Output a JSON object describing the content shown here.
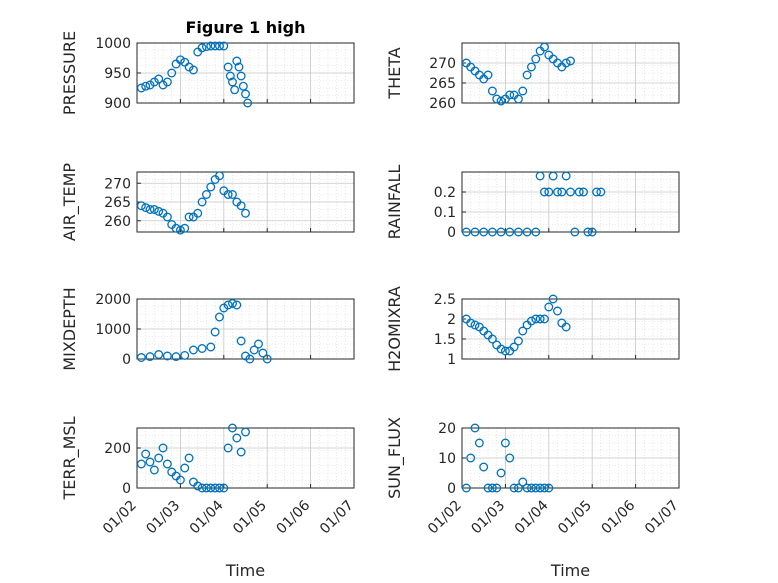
{
  "figure": {
    "title": "Figure 1 high"
  },
  "chart_data": [
    {
      "type": "scatter",
      "title": "Figure 1 high",
      "xlabel": "",
      "ylabel": "PRESSURE",
      "ylim": [
        900,
        1000
      ],
      "yticks": [
        900,
        950,
        1000
      ],
      "ytick_labels": [
        "900",
        "950",
        "1000"
      ],
      "grid": true,
      "marker_color": "#0072BD",
      "x": [
        "01/02",
        "01/03",
        "01/04",
        "01/05",
        "01/06"
      ],
      "points": [
        [
          1.1,
          925
        ],
        [
          1.2,
          928
        ],
        [
          1.3,
          930
        ],
        [
          1.4,
          935
        ],
        [
          1.5,
          940
        ],
        [
          1.6,
          930
        ],
        [
          1.7,
          935
        ],
        [
          1.8,
          950
        ],
        [
          1.9,
          965
        ],
        [
          2.0,
          972
        ],
        [
          2.1,
          968
        ],
        [
          2.2,
          960
        ],
        [
          2.3,
          955
        ],
        [
          2.4,
          985
        ],
        [
          2.5,
          992
        ],
        [
          2.6,
          994
        ],
        [
          2.7,
          995
        ],
        [
          2.8,
          995
        ],
        [
          2.9,
          995
        ],
        [
          3.0,
          995
        ],
        [
          3.1,
          960
        ],
        [
          3.15,
          945
        ],
        [
          3.2,
          935
        ],
        [
          3.25,
          922
        ],
        [
          3.3,
          970
        ],
        [
          3.35,
          960
        ],
        [
          3.4,
          945
        ],
        [
          3.45,
          928
        ],
        [
          3.5,
          915
        ],
        [
          3.55,
          900
        ]
      ]
    },
    {
      "type": "scatter",
      "title": "",
      "xlabel": "",
      "ylabel": "THETA",
      "ylim": [
        260,
        275
      ],
      "yticks": [
        260,
        265,
        270
      ],
      "ytick_labels": [
        "260",
        "265",
        "270"
      ],
      "grid": true,
      "marker_color": "#0072BD",
      "points": [
        [
          1.1,
          270
        ],
        [
          1.2,
          269
        ],
        [
          1.3,
          268
        ],
        [
          1.4,
          267
        ],
        [
          1.5,
          266
        ],
        [
          1.6,
          267
        ],
        [
          1.7,
          263
        ],
        [
          1.8,
          261
        ],
        [
          1.9,
          260.5
        ],
        [
          2.0,
          261
        ],
        [
          2.1,
          262
        ],
        [
          2.2,
          262
        ],
        [
          2.3,
          261
        ],
        [
          2.4,
          263
        ],
        [
          2.5,
          267
        ],
        [
          2.6,
          269
        ],
        [
          2.7,
          271
        ],
        [
          2.8,
          273
        ],
        [
          2.9,
          274
        ],
        [
          3.0,
          272
        ],
        [
          3.1,
          271
        ],
        [
          3.2,
          270
        ],
        [
          3.3,
          269
        ],
        [
          3.4,
          270
        ],
        [
          3.5,
          270.5
        ]
      ]
    },
    {
      "type": "scatter",
      "title": "",
      "xlabel": "",
      "ylabel": "AIR_TEMP",
      "ylim": [
        257,
        273
      ],
      "yticks": [
        260,
        265,
        270
      ],
      "ytick_labels": [
        "260",
        "265",
        "270"
      ],
      "grid": true,
      "marker_color": "#0072BD",
      "points": [
        [
          1.1,
          264
        ],
        [
          1.2,
          263.5
        ],
        [
          1.3,
          263
        ],
        [
          1.4,
          263
        ],
        [
          1.5,
          262.5
        ],
        [
          1.6,
          262
        ],
        [
          1.7,
          261
        ],
        [
          1.8,
          259
        ],
        [
          1.9,
          258
        ],
        [
          2.0,
          257.5
        ],
        [
          2.1,
          258
        ],
        [
          2.2,
          261
        ],
        [
          2.3,
          261
        ],
        [
          2.4,
          262
        ],
        [
          2.5,
          265
        ],
        [
          2.6,
          267
        ],
        [
          2.7,
          269
        ],
        [
          2.8,
          271
        ],
        [
          2.9,
          272
        ],
        [
          3.0,
          268
        ],
        [
          3.1,
          267
        ],
        [
          3.2,
          267
        ],
        [
          3.3,
          265
        ],
        [
          3.4,
          264
        ],
        [
          3.5,
          262
        ]
      ]
    },
    {
      "type": "scatter",
      "title": "",
      "xlabel": "",
      "ylabel": "RAINFALL",
      "ylim": [
        0,
        0.3
      ],
      "yticks": [
        0,
        0.1,
        0.2
      ],
      "ytick_labels": [
        "0",
        "0.1",
        "0.2"
      ],
      "grid": true,
      "marker_color": "#0072BD",
      "points": [
        [
          1.1,
          0
        ],
        [
          1.3,
          0
        ],
        [
          1.5,
          0
        ],
        [
          1.7,
          0
        ],
        [
          1.9,
          0
        ],
        [
          2.1,
          0
        ],
        [
          2.3,
          0
        ],
        [
          2.5,
          0
        ],
        [
          2.7,
          0
        ],
        [
          2.8,
          0.28
        ],
        [
          2.9,
          0.2
        ],
        [
          3.0,
          0.2
        ],
        [
          3.1,
          0.28
        ],
        [
          3.2,
          0.2
        ],
        [
          3.3,
          0.2
        ],
        [
          3.4,
          0.28
        ],
        [
          3.5,
          0.2
        ],
        [
          3.6,
          0
        ],
        [
          3.7,
          0.2
        ],
        [
          3.8,
          0.2
        ],
        [
          3.9,
          0
        ],
        [
          4.0,
          0
        ],
        [
          4.1,
          0.2
        ],
        [
          4.2,
          0.2
        ]
      ]
    },
    {
      "type": "scatter",
      "title": "",
      "xlabel": "",
      "ylabel": "MIXDEPTH",
      "ylim": [
        0,
        2000
      ],
      "yticks": [
        0,
        1000,
        2000
      ],
      "ytick_labels": [
        "0",
        "1000",
        "2000"
      ],
      "grid": true,
      "marker_color": "#0072BD",
      "points": [
        [
          1.1,
          50
        ],
        [
          1.3,
          80
        ],
        [
          1.5,
          150
        ],
        [
          1.7,
          100
        ],
        [
          1.9,
          80
        ],
        [
          2.1,
          120
        ],
        [
          2.3,
          300
        ],
        [
          2.5,
          350
        ],
        [
          2.7,
          400
        ],
        [
          2.8,
          900
        ],
        [
          2.9,
          1400
        ],
        [
          3.0,
          1700
        ],
        [
          3.1,
          1800
        ],
        [
          3.2,
          1850
        ],
        [
          3.3,
          1800
        ],
        [
          3.4,
          600
        ],
        [
          3.5,
          100
        ],
        [
          3.6,
          0
        ],
        [
          3.7,
          300
        ],
        [
          3.8,
          500
        ],
        [
          3.9,
          200
        ],
        [
          4.0,
          0
        ]
      ]
    },
    {
      "type": "scatter",
      "title": "",
      "xlabel": "",
      "ylabel": "H2OMIXRA",
      "ylim": [
        1,
        2.5
      ],
      "yticks": [
        1,
        1.5,
        2,
        2.5
      ],
      "ytick_labels": [
        "1",
        "1.5",
        "2",
        "2.5"
      ],
      "grid": true,
      "marker_color": "#0072BD",
      "points": [
        [
          1.1,
          2.0
        ],
        [
          1.2,
          1.9
        ],
        [
          1.3,
          1.85
        ],
        [
          1.4,
          1.8
        ],
        [
          1.5,
          1.7
        ],
        [
          1.6,
          1.6
        ],
        [
          1.7,
          1.5
        ],
        [
          1.8,
          1.35
        ],
        [
          1.9,
          1.25
        ],
        [
          2.0,
          1.2
        ],
        [
          2.1,
          1.2
        ],
        [
          2.2,
          1.3
        ],
        [
          2.3,
          1.45
        ],
        [
          2.4,
          1.7
        ],
        [
          2.5,
          1.85
        ],
        [
          2.6,
          1.95
        ],
        [
          2.7,
          2.0
        ],
        [
          2.8,
          2.0
        ],
        [
          2.9,
          2.0
        ],
        [
          3.0,
          2.3
        ],
        [
          3.1,
          2.5
        ],
        [
          3.2,
          2.2
        ],
        [
          3.3,
          1.9
        ],
        [
          3.4,
          1.8
        ]
      ]
    },
    {
      "type": "scatter",
      "title": "",
      "xlabel": "Time",
      "ylabel": "TERR_MSL",
      "ylim": [
        0,
        300
      ],
      "yticks": [
        0,
        200
      ],
      "ytick_labels": [
        "0",
        "200"
      ],
      "xticks": [
        "01/02",
        "01/03",
        "01/04",
        "01/05",
        "01/06",
        "01/07"
      ],
      "grid": true,
      "marker_color": "#0072BD",
      "points": [
        [
          1.1,
          120
        ],
        [
          1.2,
          170
        ],
        [
          1.3,
          130
        ],
        [
          1.4,
          90
        ],
        [
          1.5,
          150
        ],
        [
          1.6,
          200
        ],
        [
          1.7,
          120
        ],
        [
          1.8,
          80
        ],
        [
          1.9,
          60
        ],
        [
          2.0,
          40
        ],
        [
          2.1,
          100
        ],
        [
          2.2,
          150
        ],
        [
          2.3,
          30
        ],
        [
          2.4,
          10
        ],
        [
          2.5,
          0
        ],
        [
          2.6,
          0
        ],
        [
          2.7,
          0
        ],
        [
          2.8,
          0
        ],
        [
          2.9,
          0
        ],
        [
          3.0,
          0
        ],
        [
          3.1,
          200
        ],
        [
          3.2,
          300
        ],
        [
          3.3,
          250
        ],
        [
          3.4,
          180
        ],
        [
          3.5,
          280
        ]
      ]
    },
    {
      "type": "scatter",
      "title": "",
      "xlabel": "Time",
      "ylabel": "SUN_FLUX",
      "ylim": [
        0,
        20
      ],
      "yticks": [
        0,
        10,
        20
      ],
      "ytick_labels": [
        "0",
        "10",
        "20"
      ],
      "xticks": [
        "01/02",
        "01/03",
        "01/04",
        "01/05",
        "01/06",
        "01/07"
      ],
      "grid": true,
      "marker_color": "#0072BD",
      "points": [
        [
          1.1,
          0
        ],
        [
          1.2,
          10
        ],
        [
          1.3,
          20
        ],
        [
          1.4,
          15
        ],
        [
          1.5,
          7
        ],
        [
          1.6,
          0
        ],
        [
          1.7,
          0
        ],
        [
          1.8,
          0
        ],
        [
          1.9,
          5
        ],
        [
          2.0,
          15
        ],
        [
          2.1,
          10
        ],
        [
          2.2,
          0
        ],
        [
          2.3,
          0
        ],
        [
          2.4,
          2
        ],
        [
          2.5,
          0
        ],
        [
          2.6,
          0
        ],
        [
          2.7,
          0
        ],
        [
          2.8,
          0
        ],
        [
          2.9,
          0
        ],
        [
          3.0,
          0
        ]
      ]
    }
  ]
}
